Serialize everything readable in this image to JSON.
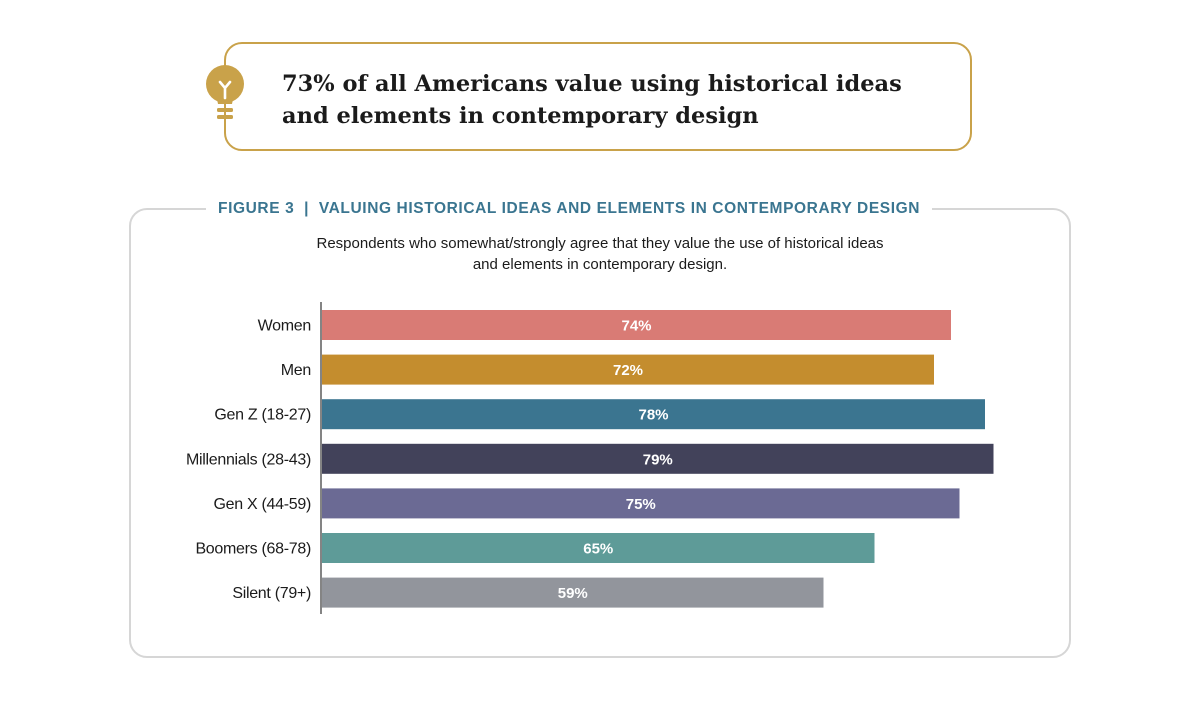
{
  "callout": {
    "icon": "lightbulb-icon",
    "line1": "73% of all Americans value using historical ideas",
    "line2": "and elements in contemporary design"
  },
  "figure": {
    "title": "FIGURE 3  |  VALUING HISTORICAL IDEAS AND ELEMENTS IN CONTEMPORARY DESIGN",
    "subtitle_line1": "Respondents who somewhat/strongly agree that they value the use of historical ideas",
    "subtitle_line2": "and elements in contemporary design."
  },
  "colors": {
    "accent_gold": "#c9a24a",
    "title_blue": "#3a7590"
  },
  "chart_data": {
    "type": "bar",
    "orientation": "horizontal",
    "title": "VALUING HISTORICAL IDEAS AND ELEMENTS IN CONTEMPORARY DESIGN",
    "categories": [
      "Women",
      "Men",
      "Gen Z (18-27)",
      "Millennials (28-43)",
      "Gen X (44-59)",
      "Boomers (68-78)",
      "Silent (79+)"
    ],
    "values": [
      74,
      72,
      78,
      79,
      75,
      65,
      59
    ],
    "labels": [
      "74%",
      "72%",
      "78%",
      "79%",
      "75%",
      "65%",
      "59%"
    ],
    "colors": [
      "#d97b75",
      "#c48d2e",
      "#3b7590",
      "#42425a",
      "#6b6a94",
      "#5e9b98",
      "#92959c"
    ],
    "unit": "%",
    "xlim": [
      0,
      100
    ],
    "grid": false,
    "legend": "none"
  }
}
